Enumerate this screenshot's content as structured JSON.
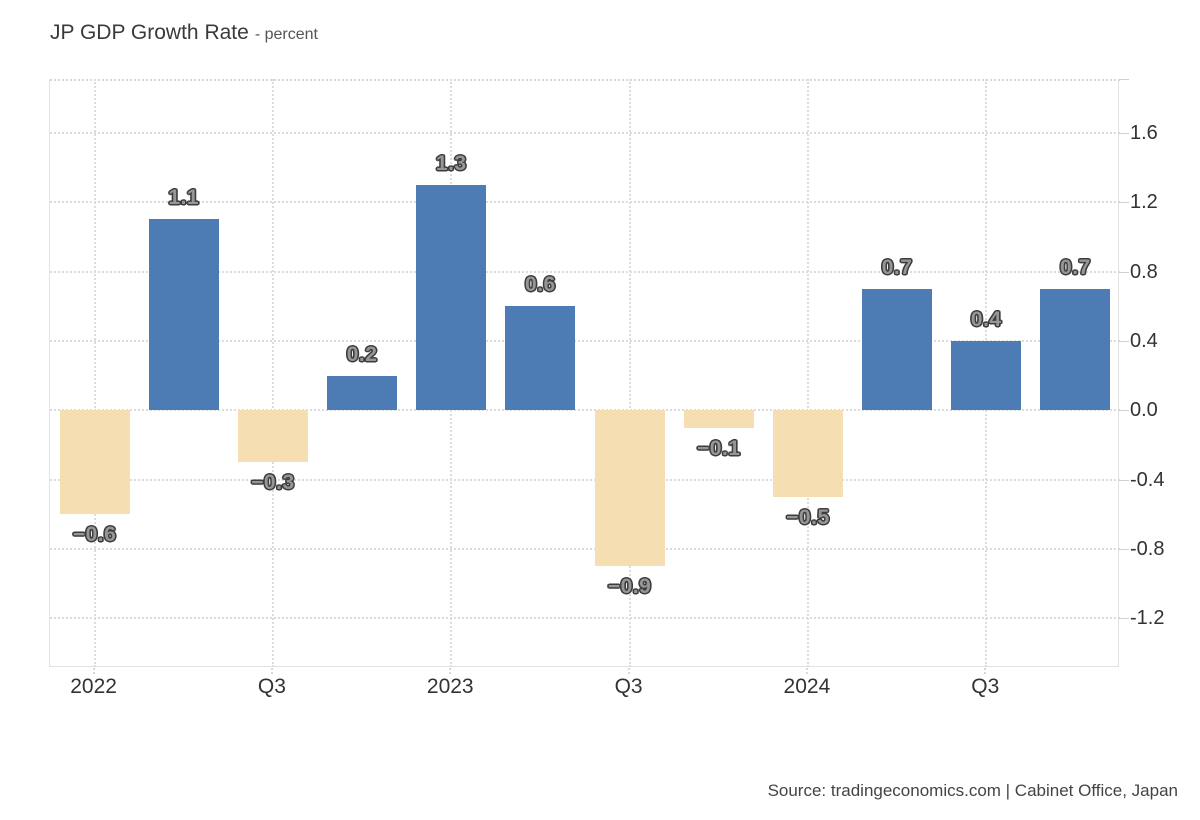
{
  "header": {
    "title": "JP GDP Growth Rate",
    "subtitle": "- percent"
  },
  "source": {
    "text": "Source: tradingeconomics.com | Cabinet Office, Japan"
  },
  "chart_data": {
    "type": "bar",
    "title": "JP GDP Growth Rate",
    "unit": "percent",
    "categories": [
      "2022",
      "",
      "Q3",
      "",
      "2023",
      "",
      "Q3",
      "",
      "2024",
      "",
      "Q3",
      ""
    ],
    "values": [
      -0.6,
      1.1,
      -0.3,
      0.2,
      1.3,
      0.6,
      -0.9,
      -0.1,
      -0.5,
      0.7,
      0.4,
      0.7
    ],
    "bar_labels": [
      "−0.6",
      "1.1",
      "−0.3",
      "0.2",
      "1.3",
      "0.6",
      "−0.9",
      "−0.1",
      "−0.5",
      "0.7",
      "0.4",
      "0.7"
    ],
    "y_ticks": [
      1.6,
      1.2,
      0.8,
      0.4,
      0.0,
      -0.4,
      -0.8,
      -1.2
    ],
    "y_tick_labels": [
      "1.6",
      "1.2",
      "0.8",
      "0.4",
      "0.0",
      "-0.4",
      "-0.8",
      "-1.2"
    ],
    "ylim": [
      -1.48,
      1.91
    ],
    "xlabel": "",
    "ylabel": "",
    "grid": "dotted",
    "legend": "none",
    "colors": {
      "positive": "#4d7cb5",
      "negative": "#f5dfb2"
    }
  }
}
